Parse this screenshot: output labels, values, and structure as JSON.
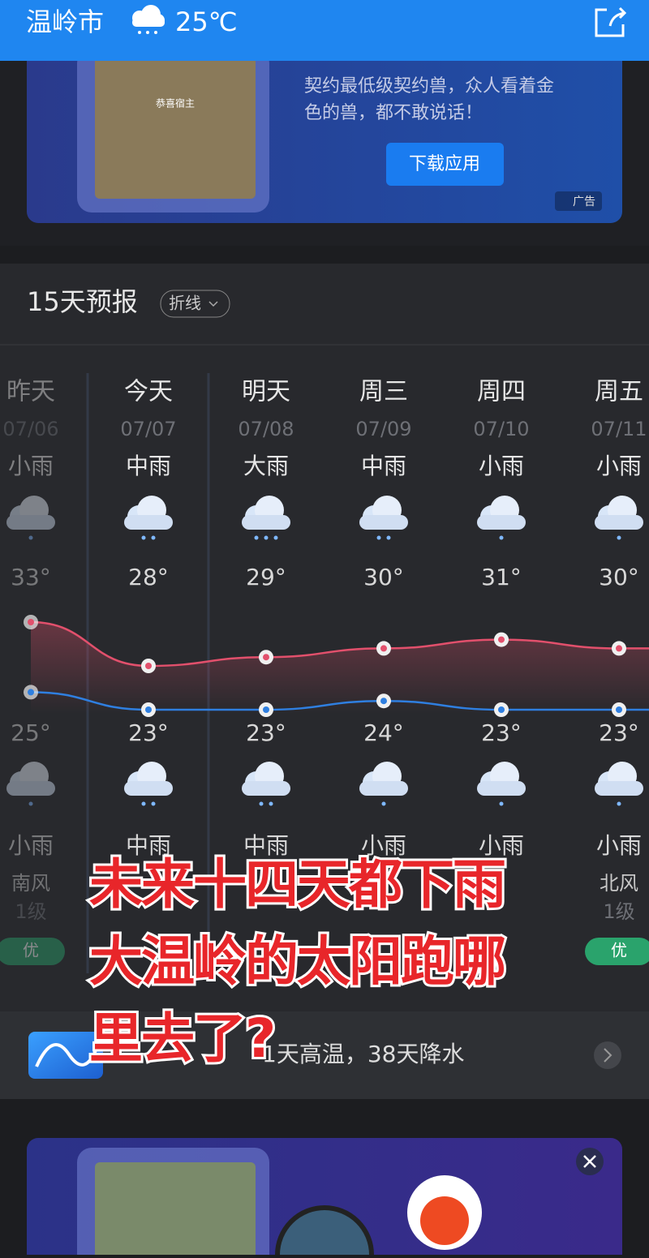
{
  "header": {
    "city": "温岭市",
    "temperature": "25℃"
  },
  "ad_top": {
    "text_line1": "契约最低级契约兽，众人看着金",
    "text_line2": "色的兽，都不敢说话！",
    "button": "下载应用",
    "label": "广告",
    "image_caption": "恭喜宿主"
  },
  "forecast": {
    "title": "15天预报",
    "toggle": "折线",
    "days": [
      {
        "day": "昨天",
        "date": "07/06",
        "weather_day": "小雨",
        "high": {
          "value": 33,
          "label": "33°"
        },
        "low": {
          "value": 25,
          "label": "25°"
        },
        "weather_night": "小雨",
        "wind": "南风",
        "wind_level": "1级",
        "aqi": "优"
      },
      {
        "day": "今天",
        "date": "07/07",
        "weather_day": "中雨",
        "high": {
          "value": 28,
          "label": "28°"
        },
        "low": {
          "value": 23,
          "label": "23°"
        },
        "weather_night": "中雨",
        "wind": null,
        "wind_level": null,
        "aqi": null
      },
      {
        "day": "明天",
        "date": "07/08",
        "weather_day": "大雨",
        "high": {
          "value": 29,
          "label": "29°"
        },
        "low": {
          "value": 23,
          "label": "23°"
        },
        "weather_night": "中雨",
        "wind": null,
        "wind_level": null,
        "aqi": null
      },
      {
        "day": "周三",
        "date": "07/09",
        "weather_day": "中雨",
        "high": {
          "value": 30,
          "label": "30°"
        },
        "low": {
          "value": 24,
          "label": "24°"
        },
        "weather_night": "小雨",
        "wind": null,
        "wind_level": null,
        "aqi": null
      },
      {
        "day": "周四",
        "date": "07/10",
        "weather_day": "小雨",
        "high": {
          "value": 31,
          "label": "31°"
        },
        "low": {
          "value": 23,
          "label": "23°"
        },
        "weather_night": "小雨",
        "wind": null,
        "wind_level": null,
        "aqi": null
      },
      {
        "day": "周五",
        "date": "07/11",
        "weather_day": "小雨",
        "high": {
          "value": 30,
          "label": "30°"
        },
        "low": {
          "value": 23,
          "label": "23°"
        },
        "weather_night": "小雨",
        "wind": "北风",
        "wind_level": "1级",
        "aqi": "优"
      }
    ],
    "summary": "1天高温，38天降水"
  },
  "overlay": {
    "lines": [
      "未来十四天都下雨",
      "大温岭的太阳跑哪",
      "里去了?"
    ]
  }
}
